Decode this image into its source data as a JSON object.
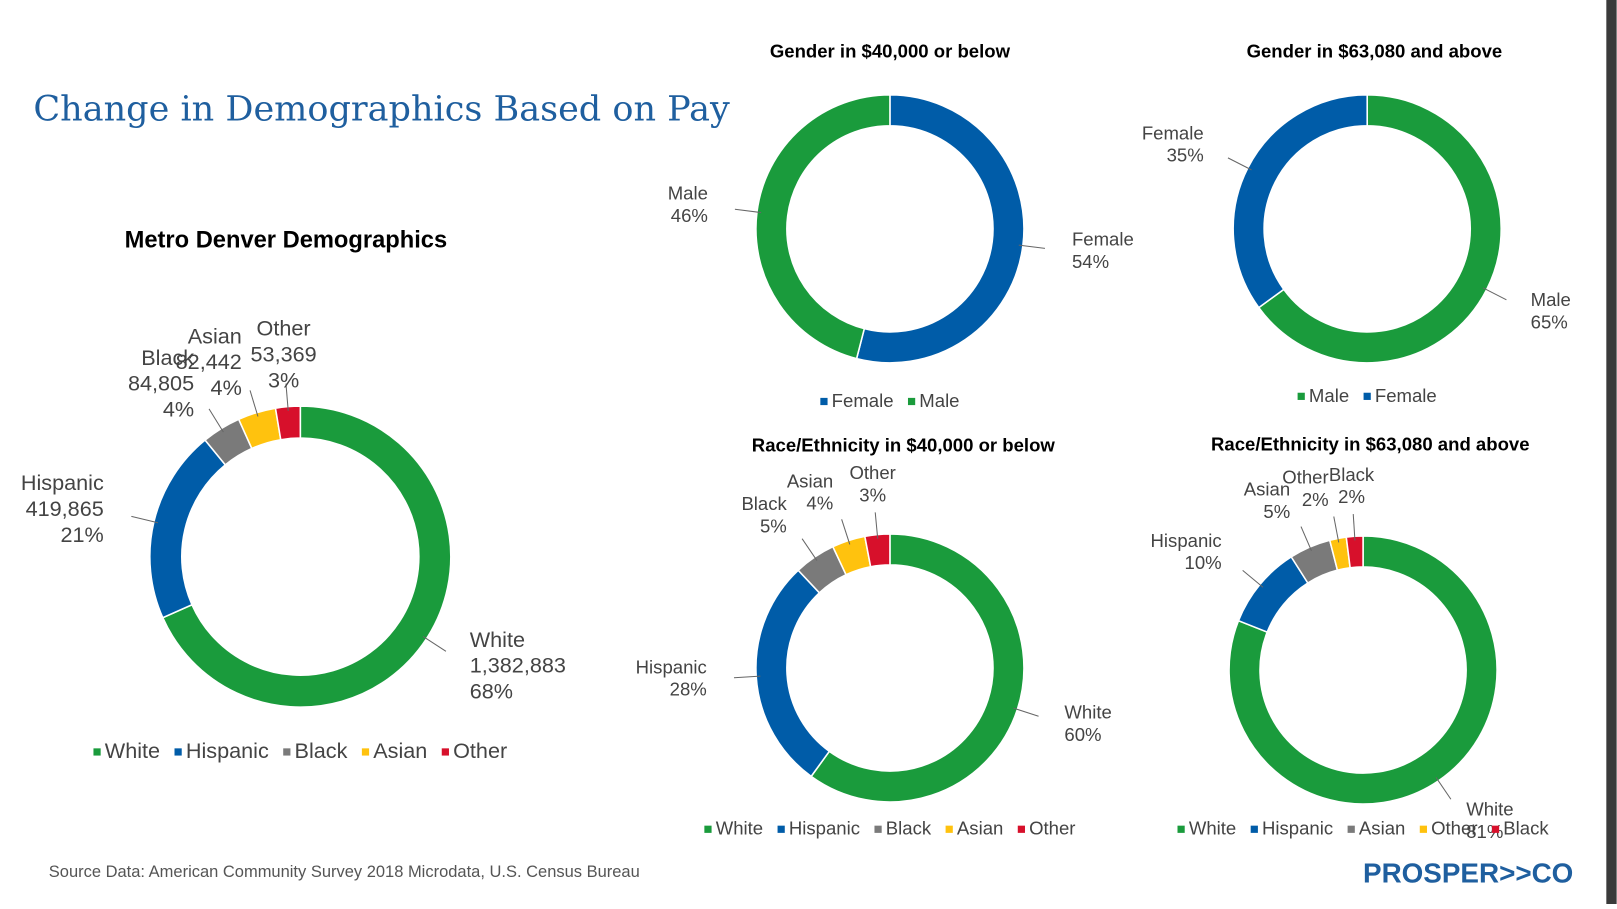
{
  "header": {
    "title": "Change in Demographics Based on Pay"
  },
  "footer": {
    "source": "Source Data: American Community Survey 2018 Microdata, U.S. Census Bureau",
    "logo": "PROSPER>>CO"
  },
  "chart_data": [
    {
      "type": "donut",
      "title": "Metro Denver Demographics",
      "categories": [
        "White",
        "Hispanic",
        "Black",
        "Asian",
        "Other"
      ],
      "colors": [
        "#1a9b3c",
        "#005ca8",
        "#7a7a7a",
        "#ffc20e",
        "#d7102b"
      ],
      "values": [
        1382883,
        419865,
        84805,
        82442,
        53369
      ],
      "value_labels": [
        "1,382,883",
        "419,865",
        "84,805",
        "82,442",
        "53,369"
      ],
      "percents": [
        68,
        21,
        4,
        4,
        3
      ],
      "percent_labels": [
        "68%",
        "21%",
        "4%",
        "4%",
        "3%"
      ]
    },
    {
      "type": "donut",
      "title": "Gender in $40,000 or below",
      "categories": [
        "Female",
        "Male"
      ],
      "colors": [
        "#005ca8",
        "#1a9b3c"
      ],
      "values": [
        54,
        46
      ],
      "value_labels": [
        "54%",
        "46%"
      ]
    },
    {
      "type": "donut",
      "title": "Gender in $63,080 and above",
      "categories": [
        "Male",
        "Female"
      ],
      "colors": [
        "#1a9b3c",
        "#005ca8"
      ],
      "values": [
        65,
        35
      ],
      "value_labels": [
        "65%",
        "35%"
      ]
    },
    {
      "type": "donut",
      "title": "Race/Ethnicity in $40,000 or below",
      "categories": [
        "White",
        "Hispanic",
        "Black",
        "Asian",
        "Other"
      ],
      "colors": [
        "#1a9b3c",
        "#005ca8",
        "#7a7a7a",
        "#ffc20e",
        "#d7102b"
      ],
      "values": [
        60,
        28,
        5,
        4,
        3
      ],
      "value_labels": [
        "60%",
        "28%",
        "5%",
        "4%",
        "3%"
      ]
    },
    {
      "type": "donut",
      "title": "Race/Ethnicity in $63,080 and above",
      "categories": [
        "White",
        "Hispanic",
        "Asian",
        "Other",
        "Black"
      ],
      "colors": [
        "#1a9b3c",
        "#005ca8",
        "#7a7a7a",
        "#ffc20e",
        "#d7102b"
      ],
      "values": [
        81,
        10,
        5,
        2,
        2
      ],
      "value_labels": [
        "81%",
        "10%",
        "5%",
        "2%",
        "2%"
      ]
    }
  ]
}
